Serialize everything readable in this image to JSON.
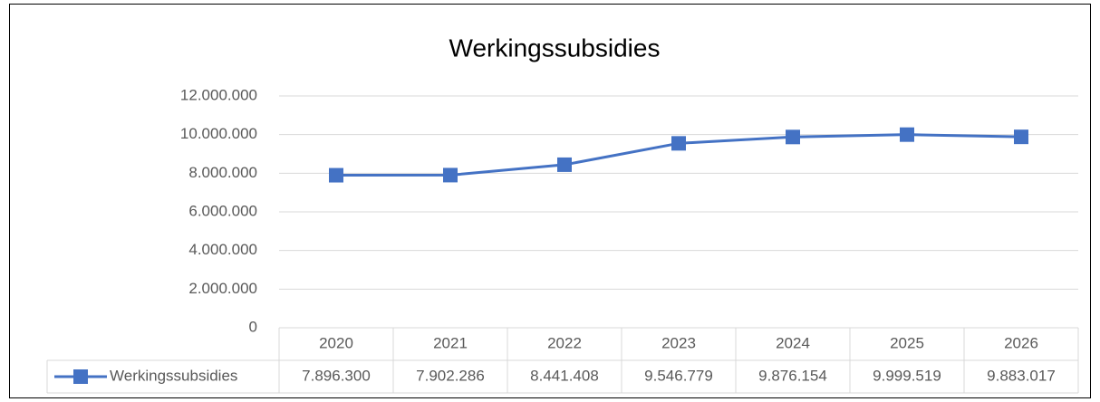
{
  "chart_data": {
    "type": "line",
    "title": "Werkingssubsidies",
    "categories": [
      "2020",
      "2021",
      "2022",
      "2023",
      "2024",
      "2025",
      "2026"
    ],
    "series": [
      {
        "name": "Werkingssubsidies",
        "color": "#4472c4",
        "values": [
          7896300,
          7902286,
          8441408,
          9546779,
          9876154,
          9999519,
          9883017
        ],
        "value_labels": [
          "7.896.300",
          "7.902.286",
          "8.441.408",
          "9.546.779",
          "9.876.154",
          "9.999.519",
          "9.883.017"
        ]
      }
    ],
    "ylim": [
      0,
      12000000
    ],
    "yticks": [
      0,
      {
        "value": 2000000,
        "label": "2.000.000"
      },
      {
        "value": 4000000,
        "label": "4.000.000"
      },
      {
        "value": 6000000,
        "label": "6.000.000"
      },
      {
        "value": 8000000,
        "label": "8.000.000"
      },
      {
        "value": 10000000,
        "label": "10.000.000"
      },
      {
        "value": 12000000,
        "label": "12.000.000"
      }
    ],
    "grid": true
  }
}
